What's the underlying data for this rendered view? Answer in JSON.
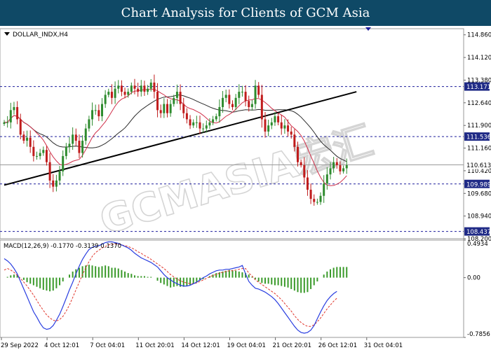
{
  "page": {
    "title": "Chart Analysis for Clients of GCM Asia"
  },
  "watermark": "GCMASIA宏汇",
  "colors": {
    "header_bg": "#0f4966",
    "bull_candle": "#2e8b2e",
    "bear_candle": "#c01c1c",
    "ma_fast": "#d0304a",
    "ma_slow": "#2b2b2b",
    "level_line": "#1d1d9c",
    "price_line": "#9a9a9a",
    "macd_line": "#2a3ee0",
    "signal_line": "#e0342a",
    "histogram": "#3a9a2a",
    "label_bg": "#1f2a86"
  },
  "chart_data": [
    {
      "type": "candlestick",
      "symbol_label": "DOLLAR_INDX,H4",
      "ylim": [
        108.2,
        115.06
      ],
      "y_ticks": [
        "114.860",
        "114.120",
        "113.380",
        "112.640",
        "111.900",
        "111.160",
        "110.420",
        "109.680",
        "108.940",
        "108.200"
      ],
      "x_ticks": [
        "29 Sep 2022",
        "4 Oct 12:01",
        "7 Oct 04:01",
        "11 Oct 20:01",
        "14 Oct 12:01",
        "19 Oct 04:01",
        "21 Oct 20:01",
        "26 Oct 12:01",
        "31 Oct 04:01"
      ],
      "x_tick_index": [
        0,
        14,
        28,
        42,
        56,
        70,
        84,
        98,
        112
      ],
      "levels": [
        {
          "value": 113.171,
          "label": "113.171"
        },
        {
          "value": 111.536,
          "label": "111.536"
        },
        {
          "value": 109.989,
          "label": "109.989"
        },
        {
          "value": 108.437,
          "label": "108.437"
        }
      ],
      "current_price": {
        "value": 110.613,
        "label": "110.613"
      },
      "trendlines": [
        {
          "from": {
            "i": 0,
            "y": 109.95
          },
          "to": {
            "i": 108,
            "y": 113.0
          }
        }
      ],
      "close": [
        112.0,
        112.0,
        112.4,
        112.5,
        112.1,
        111.6,
        111.4,
        111.5,
        111.2,
        110.9,
        110.9,
        111.0,
        111.1,
        110.7,
        110.1,
        109.9,
        110.1,
        110.4,
        110.9,
        111.2,
        111.3,
        111.6,
        111.4,
        111.0,
        111.4,
        111.8,
        112.1,
        112.4,
        112.4,
        112.2,
        112.6,
        112.9,
        113.0,
        112.8,
        113.1,
        113.2,
        113.0,
        112.9,
        113.0,
        113.2,
        113.1,
        113.0,
        113.2,
        113.0,
        113.1,
        113.3,
        113.0,
        112.4,
        112.3,
        112.6,
        112.3,
        112.6,
        112.8,
        113.0,
        112.6,
        112.3,
        112.1,
        111.9,
        112.0,
        112.0,
        111.8,
        111.8,
        111.9,
        112.0,
        112.1,
        112.2,
        112.5,
        112.8,
        112.9,
        112.6,
        112.5,
        112.8,
        113.0,
        113.0,
        112.7,
        112.5,
        112.6,
        113.2,
        112.9,
        112.1,
        111.7,
        111.9,
        112.0,
        112.2,
        112.0,
        111.8,
        111.9,
        111.7,
        111.6,
        111.2,
        110.7,
        110.6,
        110.2,
        109.8,
        109.5,
        109.4,
        109.4,
        109.6,
        110.0,
        110.3,
        110.5,
        110.7,
        110.6,
        110.4,
        110.5,
        110.6
      ]
    },
    {
      "type": "macd",
      "label": "MACD(12,26,9) -0.1770 -0.3139 0.1370",
      "ylim": [
        -0.7856,
        0.4934
      ],
      "y_ticks": [
        "0.4934",
        "0.00",
        "-0.7856"
      ],
      "histogram": [
        0.0,
        0.01,
        0.03,
        0.04,
        0.03,
        0.0,
        -0.03,
        -0.06,
        -0.08,
        -0.1,
        -0.12,
        -0.14,
        -0.16,
        -0.17,
        -0.18,
        -0.17,
        -0.14,
        -0.1,
        -0.05,
        0.0,
        0.04,
        0.08,
        0.11,
        0.13,
        0.15,
        0.16,
        0.17,
        0.16,
        0.15,
        0.14,
        0.15,
        0.16,
        0.15,
        0.13,
        0.13,
        0.12,
        0.1,
        0.08,
        0.06,
        0.05,
        0.03,
        0.02,
        0.02,
        0.02,
        0.01,
        0.01,
        0.0,
        -0.04,
        -0.07,
        -0.09,
        -0.11,
        -0.13,
        -0.12,
        -0.11,
        -0.12,
        -0.12,
        -0.11,
        -0.1,
        -0.08,
        -0.06,
        -0.04,
        -0.02,
        0.0,
        0.02,
        0.04,
        0.06,
        0.07,
        0.08,
        0.09,
        0.1,
        0.1,
        0.09,
        0.08,
        0.07,
        0.06,
        0.04,
        0.01,
        -0.02,
        -0.05,
        -0.07,
        -0.08,
        -0.08,
        -0.09,
        -0.1,
        -0.1,
        -0.11,
        -0.12,
        -0.13,
        -0.15,
        -0.17,
        -0.19,
        -0.2,
        -0.2,
        -0.19,
        -0.15,
        -0.1,
        -0.05,
        0.0,
        0.04,
        0.08,
        0.11,
        0.13,
        0.14,
        0.14,
        0.14,
        0.14
      ],
      "macd": [
        0.25,
        0.22,
        0.18,
        0.12,
        0.05,
        -0.05,
        -0.15,
        -0.25,
        -0.35,
        -0.45,
        -0.52,
        -0.6,
        -0.66,
        -0.68,
        -0.67,
        -0.63,
        -0.56,
        -0.48,
        -0.38,
        -0.27,
        -0.16,
        -0.06,
        0.05,
        0.15,
        0.24,
        0.31,
        0.37,
        0.4,
        0.41,
        0.42,
        0.44,
        0.46,
        0.47,
        0.47,
        0.46,
        0.45,
        0.43,
        0.41,
        0.39,
        0.36,
        0.32,
        0.29,
        0.26,
        0.24,
        0.22,
        0.2,
        0.17,
        0.14,
        0.09,
        0.04,
        0.0,
        -0.03,
        -0.06,
        -0.08,
        -0.1,
        -0.11,
        -0.11,
        -0.1,
        -0.08,
        -0.06,
        -0.03,
        0.0,
        0.02,
        0.05,
        0.07,
        0.09,
        0.1,
        0.1,
        0.11,
        0.11,
        0.12,
        0.13,
        0.14,
        0.16,
        0.05,
        -0.05,
        -0.1,
        -0.14,
        -0.15,
        -0.17,
        -0.19,
        -0.22,
        -0.25,
        -0.29,
        -0.34,
        -0.4,
        -0.46,
        -0.52,
        -0.58,
        -0.64,
        -0.69,
        -0.72,
        -0.73,
        -0.72,
        -0.69,
        -0.63,
        -0.54,
        -0.45,
        -0.37,
        -0.3,
        -0.25,
        -0.21,
        -0.18
      ],
      "signal": [
        0.1,
        0.12,
        0.1,
        0.07,
        0.03,
        -0.01,
        -0.06,
        -0.11,
        -0.17,
        -0.23,
        -0.3,
        -0.37,
        -0.43,
        -0.49,
        -0.53,
        -0.56,
        -0.57,
        -0.55,
        -0.51,
        -0.44,
        -0.36,
        -0.26,
        -0.16,
        -0.06,
        0.04,
        0.13,
        0.21,
        0.28,
        0.33,
        0.36,
        0.39,
        0.41,
        0.43,
        0.44,
        0.44,
        0.44,
        0.43,
        0.42,
        0.41,
        0.39,
        0.37,
        0.34,
        0.32,
        0.29,
        0.27,
        0.24,
        0.21,
        0.18,
        0.15,
        0.12,
        0.08,
        0.04,
        0.01,
        -0.02,
        -0.04,
        -0.06,
        -0.07,
        -0.08,
        -0.08,
        -0.07,
        -0.05,
        -0.03,
        -0.01,
        0.01,
        0.03,
        0.04,
        0.06,
        0.07,
        0.08,
        0.09,
        0.09,
        0.1,
        0.11,
        0.12,
        0.12,
        0.06,
        0.02,
        -0.03,
        -0.06,
        -0.09,
        -0.12,
        -0.15,
        -0.18,
        -0.21,
        -0.25,
        -0.29,
        -0.34,
        -0.39,
        -0.44,
        -0.5,
        -0.55,
        -0.59,
        -0.62,
        -0.64,
        -0.64,
        -0.62,
        -0.58,
        -0.53,
        -0.47,
        -0.41,
        -0.36,
        -0.31,
        -0.27
      ]
    }
  ]
}
